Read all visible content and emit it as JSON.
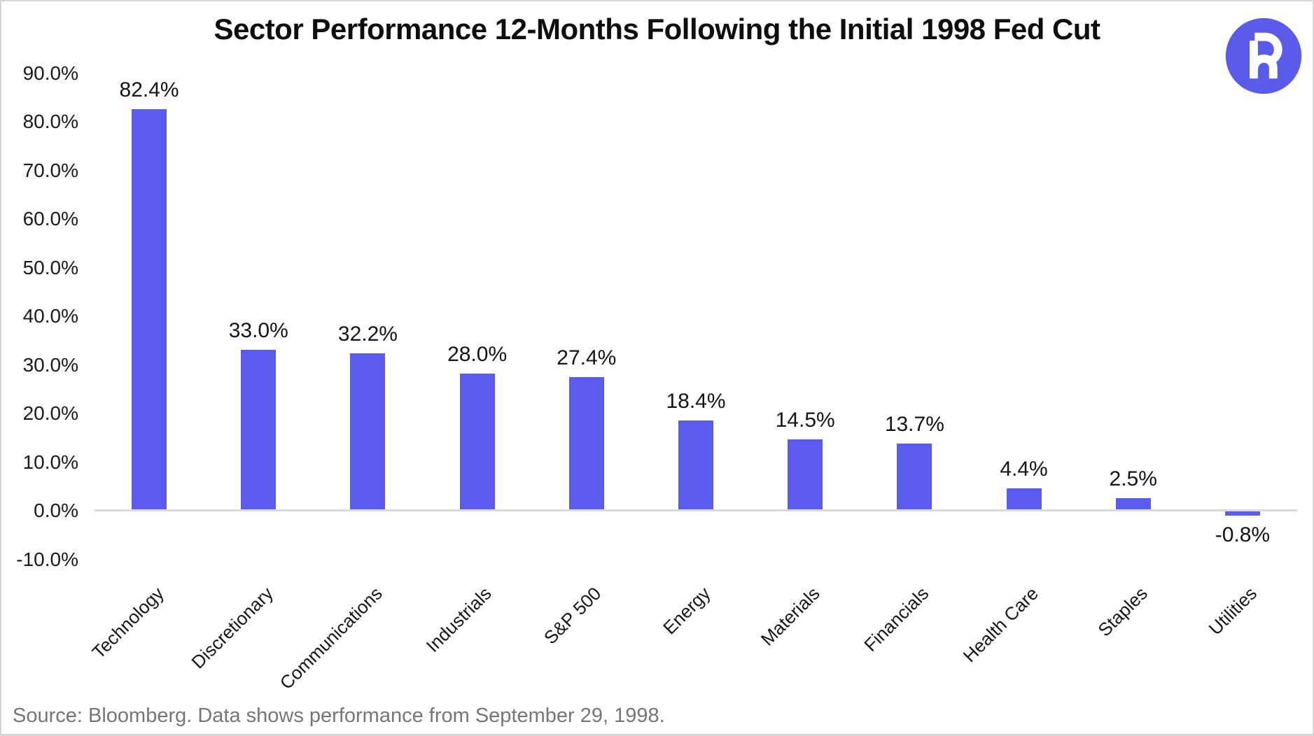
{
  "chart_data": {
    "type": "bar",
    "title": "Sector Performance 12-Months Following the Initial 1998 Fed Cut",
    "categories": [
      "Technology",
      "Discretionary",
      "Communications",
      "Industrials",
      "S&P 500",
      "Energy",
      "Materials",
      "Financials",
      "Health Care",
      "Staples",
      "Utilities"
    ],
    "values": [
      82.4,
      33.0,
      32.2,
      28.0,
      27.4,
      18.4,
      14.5,
      13.7,
      4.4,
      2.5,
      -0.8
    ],
    "value_labels": [
      "82.4%",
      "33.0%",
      "32.2%",
      "28.0%",
      "27.4%",
      "18.4%",
      "14.5%",
      "13.7%",
      "4.4%",
      "2.5%",
      "-0.8%"
    ],
    "y_ticks": [
      90,
      80,
      70,
      60,
      50,
      40,
      30,
      20,
      10,
      0,
      -10
    ],
    "y_tick_labels": [
      "90.0%",
      "80.0%",
      "70.0%",
      "60.0%",
      "50.0%",
      "40.0%",
      "30.0%",
      "20.0%",
      "10.0%",
      "0.0%",
      "-10.0%"
    ],
    "ylim": [
      -10,
      90
    ],
    "xlabel": "",
    "ylabel": "",
    "grid": false,
    "legend": "none",
    "bar_color": "#5B5CEE",
    "axis_color": "#D9D9D9",
    "label_color": "#141414"
  },
  "logo": {
    "shape": "circle",
    "monogram": "Rh",
    "background_color": "#5A5BEB",
    "glyph_color": "#FFFFFF"
  },
  "footer": {
    "source_text": "Source: Bloomberg. Data shows performance from September 29, 1998."
  }
}
